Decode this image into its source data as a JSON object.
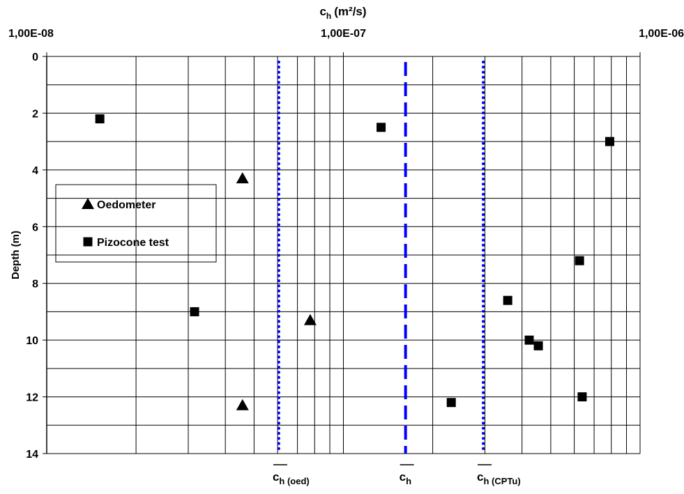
{
  "chart_data": {
    "type": "scatter",
    "x_label": {
      "symbol": "c",
      "sub": "h",
      "rest": "(m²/s)"
    },
    "y_label": "Depth (m)",
    "x_scale": "log",
    "xlim": [
      1e-08,
      1e-06
    ],
    "xticks": [
      {
        "value": 1e-08,
        "label": "1,00E-08"
      },
      {
        "value": 1e-07,
        "label": "1,00E-07"
      },
      {
        "value": 1e-06,
        "label": "1,00E-06"
      }
    ],
    "x_minor_grid": [
      2e-08,
      3e-08,
      4e-08,
      5e-08,
      6e-08,
      7e-08,
      8e-08,
      9e-08,
      2e-07,
      3e-07,
      4e-07,
      5e-07,
      6e-07,
      7e-07,
      8e-07,
      9e-07
    ],
    "ylim": [
      0,
      14
    ],
    "y_inverted": true,
    "yticks": [
      0,
      2,
      4,
      6,
      8,
      10,
      12,
      14
    ],
    "y_minor_grid": [
      1,
      3,
      5,
      7,
      9,
      11,
      13
    ],
    "grid": true,
    "series": [
      {
        "name": "Oedometer",
        "marker": "triangle",
        "color": "#000000",
        "x": [
          4.57e-08,
          7.73e-08,
          4.57e-08
        ],
        "values": [
          4.3,
          9.3,
          12.3
        ]
      },
      {
        "name": "Pizocone test",
        "marker": "square",
        "color": "#000000",
        "x": [
          1.51e-08,
          1.34e-07,
          7.9e-07,
          6.25e-07,
          3.15e-08,
          3.58e-07,
          4.23e-07,
          4.54e-07,
          2.31e-07,
          6.38e-07
        ],
        "values": [
          2.2,
          2.5,
          3.0,
          7.2,
          9.0,
          8.6,
          10.0,
          10.2,
          12.2,
          12.0
        ]
      }
    ],
    "reference_lines": [
      {
        "x": 6.06e-08,
        "style": "dotted",
        "color": "#0000ff",
        "label": {
          "symbol": "c",
          "sub": "h (oed)"
        }
      },
      {
        "x": 1.62e-07,
        "style": "dashed",
        "color": "#0000ff",
        "label": {
          "symbol": "c",
          "sub": "h"
        }
      },
      {
        "x": 2.96e-07,
        "style": "dotted",
        "color": "#0000ff",
        "label": {
          "symbol": "c",
          "sub": "h (CPTu)"
        }
      }
    ]
  }
}
